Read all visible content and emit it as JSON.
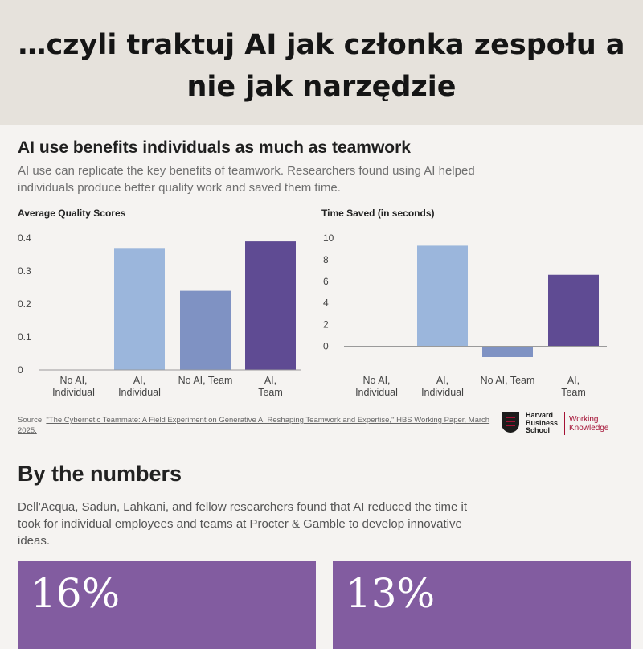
{
  "banner": {
    "title": "…czyli traktuj AI jak członka zespołu a nie jak narzędzie"
  },
  "article": {
    "headline": "AI use benefits individuals as much as teamwork",
    "intro": "AI use can replicate the key benefits of teamwork. Researchers found using AI helped individuals produce better quality work and saved them time."
  },
  "chart_data": [
    {
      "type": "bar",
      "title": "Average Quality Scores",
      "xlabel": "",
      "ylabel": "",
      "categories": [
        "No AI, Individual",
        "AI, Individual",
        "No AI, Team",
        "AI, Team"
      ],
      "values": [
        0,
        0.37,
        0.24,
        0.39
      ],
      "colors": [
        "#9bb6dc",
        "#9bb6dc",
        "#7f92c3",
        "#5f4b93"
      ],
      "yticks": [
        "0.4",
        "0.3",
        "0.2",
        "0.1",
        "0"
      ],
      "ylim": [
        0,
        0.4
      ],
      "grid": false
    },
    {
      "type": "bar",
      "title": "Time Saved (in seconds)",
      "xlabel": "",
      "ylabel": "",
      "categories": [
        "No AI, Individual",
        "AI, Individual",
        "No AI, Team",
        "AI, Team"
      ],
      "values": [
        0,
        9.3,
        -1,
        6.6
      ],
      "colors": [
        "#9bb6dc",
        "#9bb6dc",
        "#7f92c3",
        "#5f4b93"
      ],
      "yticks": [
        "10",
        "8",
        "6",
        "4",
        "2",
        "0"
      ],
      "ylim": [
        -1,
        10
      ],
      "grid": false
    }
  ],
  "source": {
    "prefix": "Source: ",
    "link": "\"The Cybernetic Teammate: A Field Experiment on Generative AI Reshaping Teamwork and Expertise,\" HBS Working Paper, March 2025."
  },
  "logo": {
    "school": "Harvard Business School",
    "sub": "Working Knowledge"
  },
  "numbers": {
    "heading": "By the numbers",
    "text": "Dell'Acqua, Sadun, Lahkani, and fellow researchers found that AI reduced the time it took for individual employees and teams at Procter & Gamble to develop innovative ideas.",
    "cards": [
      {
        "value": "16%"
      },
      {
        "value": "13%"
      }
    ]
  }
}
